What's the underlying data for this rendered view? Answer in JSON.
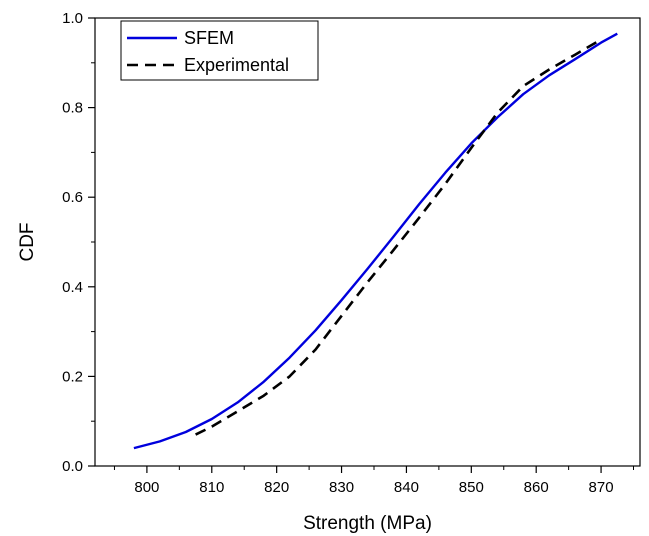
{
  "chart_data": {
    "type": "line",
    "title": "",
    "xlabel": "Strength (MPa)",
    "ylabel": "CDF",
    "xlim": [
      792,
      876
    ],
    "ylim": [
      0.0,
      1.0
    ],
    "x_ticks": [
      800,
      810,
      820,
      830,
      840,
      850,
      860,
      870
    ],
    "x_tick_labels": [
      "800",
      "810",
      "820",
      "830",
      "840",
      "850",
      "860",
      "870"
    ],
    "y_ticks": [
      0.0,
      0.2,
      0.4,
      0.6,
      0.8,
      1.0
    ],
    "y_tick_labels": [
      "0.0",
      "0.2",
      "0.4",
      "0.6",
      "0.8",
      "1.0"
    ],
    "grid": false,
    "legend": "top-left",
    "series": [
      {
        "name": "SFEM",
        "color": "#0000dd",
        "style": "solid",
        "x": [
          798,
          802,
          806,
          810,
          814,
          818,
          822,
          826,
          830,
          834,
          838,
          842,
          846,
          850,
          854,
          858,
          862,
          866,
          870,
          872.5
        ],
        "y": [
          0.04,
          0.055,
          0.076,
          0.105,
          0.142,
          0.188,
          0.242,
          0.303,
          0.37,
          0.44,
          0.512,
          0.585,
          0.655,
          0.72,
          0.778,
          0.83,
          0.872,
          0.908,
          0.945,
          0.965
        ]
      },
      {
        "name": "Experimental",
        "color": "#000000",
        "style": "dashed",
        "x": [
          807.5,
          810,
          814,
          818,
          822,
          826,
          830,
          834,
          838,
          842,
          846,
          850,
          854,
          858,
          862,
          866,
          870
        ],
        "y": [
          0.07,
          0.088,
          0.122,
          0.157,
          0.2,
          0.26,
          0.335,
          0.41,
          0.482,
          0.555,
          0.63,
          0.71,
          0.788,
          0.848,
          0.885,
          0.918,
          0.952
        ]
      }
    ]
  }
}
